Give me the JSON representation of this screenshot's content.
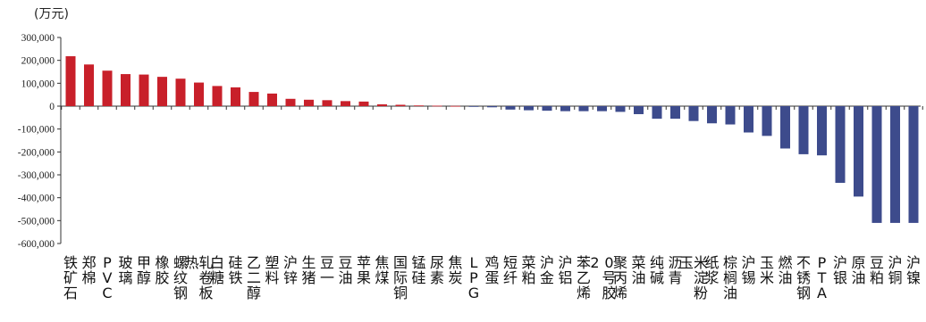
{
  "chart_data": {
    "type": "bar",
    "unit": "(万元)",
    "ylim": [
      -600000,
      300000
    ],
    "yticks": [
      "300,000",
      "200,000",
      "100,000",
      "0",
      "-100,000",
      "-200,000",
      "-300,000",
      "-400,000",
      "-500,000",
      "-600,000"
    ],
    "ytick_values": [
      300000,
      200000,
      100000,
      0,
      -100000,
      -200000,
      -300000,
      -400000,
      -500000,
      -600000
    ],
    "positive_color": "#c8202a",
    "negative_color": "#3d4b8c",
    "categories": [
      "铁矿石",
      "郑棉",
      "PVC",
      "玻璃",
      "甲醇",
      "橡胶",
      "螺纹钢",
      "热轧卷板",
      "白糖",
      "硅铁",
      "乙二醇",
      "塑料",
      "沪锌",
      "生猪",
      "豆一",
      "豆油",
      "苹果",
      "焦煤",
      "国际铜",
      "锰硅",
      "尿素",
      "焦炭",
      "LPG",
      "鸡蛋",
      "短纤",
      "菜粕",
      "沪金",
      "沪铝",
      "苯乙烯",
      "20号胶",
      "聚丙烯",
      "菜油",
      "纯碱",
      "沥青",
      "玉米淀粉",
      "纸浆",
      "棕榈油",
      "沪锡",
      "玉米",
      "燃油",
      "不锈钢",
      "PTA",
      "沪银",
      "原油",
      "豆粕",
      "沪铜",
      "沪镍"
    ],
    "values": [
      218000,
      182000,
      155000,
      140000,
      138000,
      128000,
      120000,
      103000,
      88000,
      82000,
      62000,
      55000,
      32000,
      28000,
      26000,
      22000,
      20000,
      8000,
      6000,
      3000,
      2000,
      1000,
      -1000,
      -5000,
      -15000,
      -18000,
      -20000,
      -22000,
      -22000,
      -22000,
      -25000,
      -35000,
      -55000,
      -55000,
      -65000,
      -75000,
      -80000,
      -115000,
      -130000,
      -185000,
      -210000,
      -215000,
      -335000,
      -395000,
      -510000,
      -510000,
      -510000
    ]
  }
}
